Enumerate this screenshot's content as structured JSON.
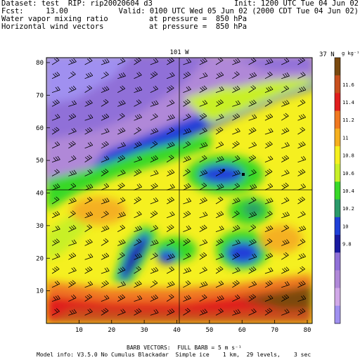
{
  "header": {
    "line1_left": "Dataset: test  RIP: rip20020604 d3",
    "line1_right": "Init: 1200 UTC Tue 04 Jun 02",
    "line2_left": "Fcst:     13.00",
    "line2_right": "Valid: 0100 UTC Wed 05 Jun 02 (2000 CDT Tue 04 Jun 02)",
    "line3_left": "Water vapor mixing ratio",
    "line3_right": "at pressure =  850 hPa",
    "line4_left": "Horizontal wind vectors",
    "line4_right": "at pressure =  850 hPa"
  },
  "map": {
    "cross_top_label": "101 W",
    "cross_right_label": "37 N",
    "x_ticks": [
      "10",
      "20",
      "30",
      "40",
      "50",
      "60",
      "70",
      "80"
    ],
    "y_ticks": [
      "10",
      "20",
      "30",
      "40",
      "50",
      "60",
      "70",
      "80"
    ]
  },
  "colorbar": {
    "unit_label": "g kg⁻¹",
    "labels": [
      "11.6",
      "11.4",
      "11.2",
      "11",
      "10.8",
      "10.6",
      "10.4",
      "10.2",
      "10",
      "9.8"
    ],
    "colors": [
      "#7a4a10",
      "#c8501e",
      "#e01e1e",
      "#f07820",
      "#f5b020",
      "#f5f020",
      "#c8f028",
      "#38d828",
      "#2a9a6a",
      "#2040d8",
      "#1a1aa0",
      "#9070d8",
      "#b088d8",
      "#d0a8e8",
      "#a090f0"
    ]
  },
  "footer": {
    "barb_line": "BARB VECTORS:  FULL BARB = 5 m s⁻¹",
    "model_line": "Model info: V3.5.0 No Cumulus Blackadar  Simple ice    1 km,  29 levels,    3 sec"
  }
}
